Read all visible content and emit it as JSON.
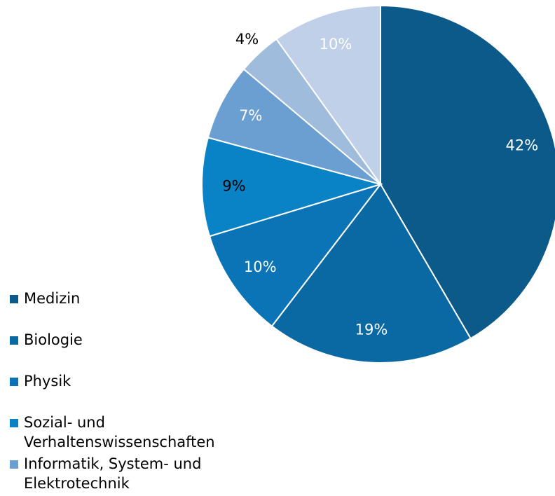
{
  "chart_data": {
    "type": "pie",
    "categories": [
      "Medizin",
      "Biologie",
      "Physik",
      "Sozial- und Verhaltenswissenschaften",
      "Informatik, System- und Elektrotechnik",
      null,
      null
    ],
    "values": [
      42,
      19,
      10,
      9,
      7,
      4,
      10
    ],
    "value_labels": [
      "42%",
      "19%",
      "10%",
      "9%",
      "7%",
      "4%",
      "10%"
    ],
    "colors": [
      "#0b5a89",
      "#0a68a2",
      "#0a74b6",
      "#0a82c6",
      "#6c9fd1",
      "#a0bcdc",
      "#bfd0e8"
    ],
    "label_colors": [
      "#ffffff",
      "#ffffff",
      "#ffffff",
      "#000000",
      "#ffffff",
      "#000000",
      "#ffffff"
    ]
  }
}
